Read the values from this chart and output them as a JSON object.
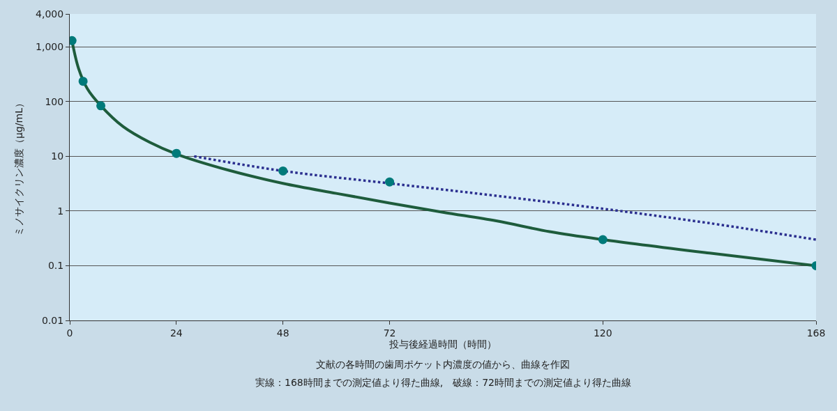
{
  "chart_data": {
    "type": "scatter",
    "xlabel": "投与後経過時間（時間）",
    "ylabel": "ミノサイクリン濃度（μg/mL）",
    "annotations": [
      "文献の各時間の歯周ポケット内濃度の値から、曲線を作図",
      "実線：168時間までの測定値より得た曲線,　破線：72時間までの測定値より得た曲線"
    ],
    "series": [
      {
        "type": "line",
        "color": "#1e5c3c",
        "line_style": "solid",
        "marker": "none",
        "x": [
          0.5,
          2,
          4,
          7,
          12,
          18,
          24,
          36,
          48,
          60,
          72,
          84,
          96,
          108,
          120,
          144,
          168
        ],
        "values": [
          1300,
          400,
          170,
          84,
          35,
          18,
          11,
          5.5,
          3.2,
          2.1,
          1.4,
          0.95,
          0.66,
          0.42,
          0.3,
          0.17,
          0.1
        ]
      },
      {
        "type": "line",
        "color": "#2b2f8f",
        "line_style": "dotted",
        "marker": "none",
        "x": [
          28,
          48,
          72,
          96,
          120,
          144,
          168
        ],
        "values": [
          10,
          5.4,
          3.2,
          1.9,
          1.1,
          0.6,
          0.3
        ]
      },
      {
        "color": "#007a7a",
        "marker": "circle",
        "x": [
          0.5,
          3,
          7,
          24,
          48,
          72,
          120,
          168
        ],
        "values": [
          1300,
          235,
          84,
          11.3,
          5.4,
          3.4,
          0.3,
          0.1
        ]
      }
    ],
    "xlim": [
      0,
      168
    ],
    "xticks": [
      0,
      24,
      48,
      72,
      120,
      168
    ],
    "ylim": [
      0.01,
      4000
    ],
    "yticks": [
      0.01,
      0.1,
      1,
      10,
      100,
      {
        "value": 1000,
        "label": "1,000"
      },
      {
        "value": 4000,
        "label": "4,000"
      }
    ],
    "log": "y",
    "grid": "y"
  }
}
